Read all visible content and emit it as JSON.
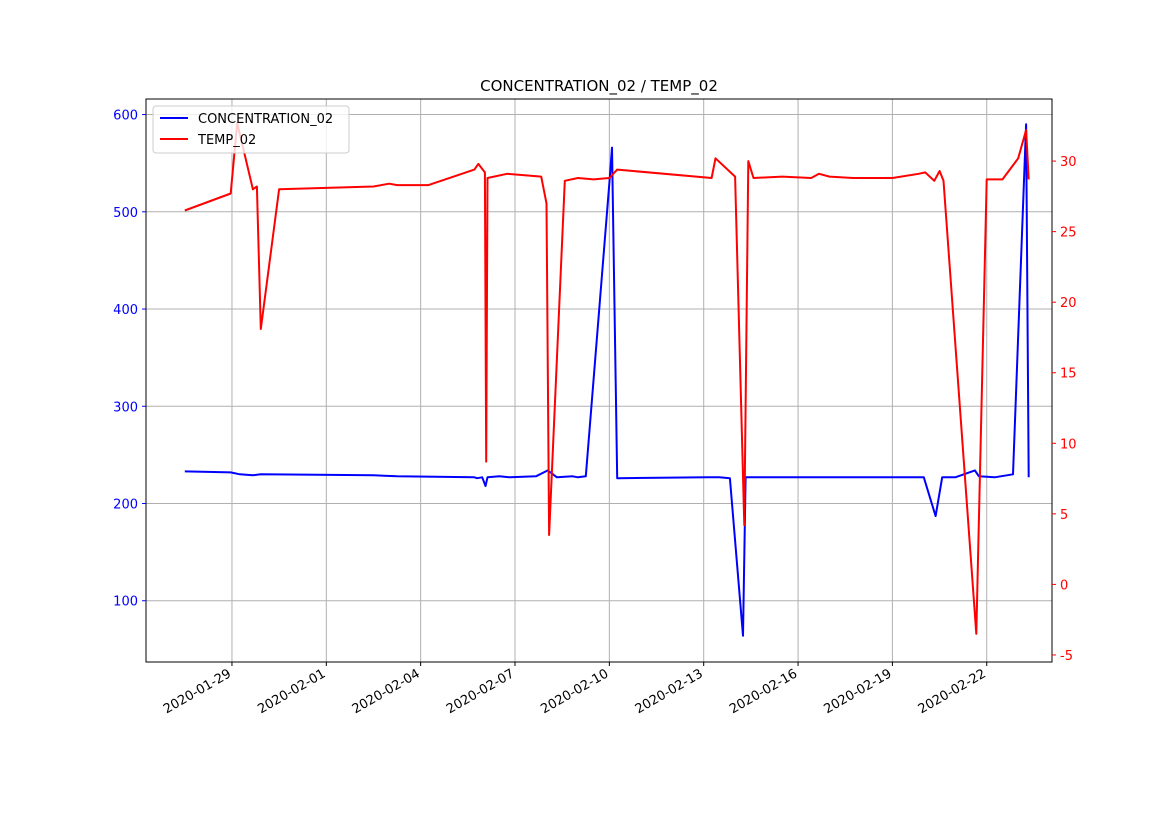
{
  "chart_data": {
    "type": "line",
    "title": "CONCENTRATION_02 / TEMP_02",
    "xlabel": "",
    "ylabel": "",
    "ylabel_right": "",
    "grid": true,
    "legend_position": "top-left",
    "x_ticks": [
      "2020-01-29",
      "2020-02-01",
      "2020-02-04",
      "2020-02-07",
      "2020-02-10",
      "2020-02-13",
      "2020-02-16",
      "2020-02-19",
      "2020-02-22"
    ],
    "y_left_ticks": [
      100,
      200,
      300,
      400,
      500,
      600
    ],
    "y_right_ticks": [
      -5,
      0,
      5,
      10,
      15,
      20,
      25,
      30
    ],
    "xlim": [
      "2020-01-26 06:24",
      "2020-02-24 01:48"
    ],
    "ylim_left": [
      37,
      616
    ],
    "ylim_right": [
      -5.5,
      34.4
    ],
    "series": [
      {
        "name": "CONCENTRATION_02",
        "axis": "left",
        "color": "#0000ff",
        "points": [
          [
            "2020-01-27 12:00",
            233
          ],
          [
            "2020-01-28 23:00",
            232
          ],
          [
            "2020-01-29 06:00",
            230
          ],
          [
            "2020-01-29 16:00",
            229
          ],
          [
            "2020-01-29 22:00",
            230
          ],
          [
            "2020-02-02 12:00",
            229
          ],
          [
            "2020-02-03 06:00",
            228
          ],
          [
            "2020-02-05 17:00",
            227
          ],
          [
            "2020-02-05 19:00",
            226
          ],
          [
            "2020-02-05 23:00",
            227
          ],
          [
            "2020-02-06 01:30",
            218
          ],
          [
            "2020-02-06 03:00",
            227
          ],
          [
            "2020-02-06 12:00",
            228
          ],
          [
            "2020-02-06 20:00",
            227
          ],
          [
            "2020-02-07 16:00",
            228
          ],
          [
            "2020-02-08 01:00",
            234
          ],
          [
            "2020-02-08 08:00",
            227
          ],
          [
            "2020-02-08 20:00",
            228
          ],
          [
            "2020-02-09 00:00",
            227
          ],
          [
            "2020-02-09 06:00",
            228
          ],
          [
            "2020-02-10 00:00",
            530
          ],
          [
            "2020-02-10 02:00",
            566
          ],
          [
            "2020-02-10 06:00",
            226
          ],
          [
            "2020-02-13 03:00",
            227
          ],
          [
            "2020-02-13 12:00",
            227
          ],
          [
            "2020-02-13 20:00",
            226
          ],
          [
            "2020-02-14 06:00",
            64
          ],
          [
            "2020-02-14 08:00",
            227
          ],
          [
            "2020-02-15 00:00",
            227
          ],
          [
            "2020-02-16 10:00",
            227
          ],
          [
            "2020-02-16 18:00",
            227
          ],
          [
            "2020-02-20 00:00",
            227
          ],
          [
            "2020-02-20 09:00",
            187
          ],
          [
            "2020-02-20 14:00",
            227
          ],
          [
            "2020-02-21 00:00",
            227
          ],
          [
            "2020-02-21 15:00",
            234
          ],
          [
            "2020-02-21 18:00",
            228
          ],
          [
            "2020-02-22 06:00",
            227
          ],
          [
            "2020-02-22 20:00",
            230
          ],
          [
            "2020-02-23 06:00",
            590
          ],
          [
            "2020-02-23 08:00",
            227
          ]
        ]
      },
      {
        "name": "TEMP_02",
        "axis": "right",
        "color": "#ff0000",
        "points": [
          [
            "2020-01-27 12:00",
            26.5
          ],
          [
            "2020-01-28 23:00",
            27.7
          ],
          [
            "2020-01-29 04:00",
            32.7
          ],
          [
            "2020-01-29 16:00",
            28.0
          ],
          [
            "2020-01-29 19:00",
            28.2
          ],
          [
            "2020-01-29 22:00",
            18.1
          ],
          [
            "2020-01-30 12:00",
            28.0
          ],
          [
            "2020-02-02 12:00",
            28.2
          ],
          [
            "2020-02-03 00:00",
            28.4
          ],
          [
            "2020-02-03 06:00",
            28.3
          ],
          [
            "2020-02-04 06:00",
            28.3
          ],
          [
            "2020-02-05 17:00",
            29.4
          ],
          [
            "2020-02-05 20:00",
            29.8
          ],
          [
            "2020-02-06 01:00",
            29.2
          ],
          [
            "2020-02-06 02:00",
            8.7
          ],
          [
            "2020-02-06 03:00",
            28.8
          ],
          [
            "2020-02-06 18:00",
            29.1
          ],
          [
            "2020-02-07 20:00",
            28.9
          ],
          [
            "2020-02-08 00:00",
            27.0
          ],
          [
            "2020-02-08 02:00",
            3.5
          ],
          [
            "2020-02-08 14:00",
            28.6
          ],
          [
            "2020-02-09 00:00",
            28.8
          ],
          [
            "2020-02-09 12:00",
            28.7
          ],
          [
            "2020-02-10 00:00",
            28.8
          ],
          [
            "2020-02-10 06:00",
            29.4
          ],
          [
            "2020-02-13 06:00",
            28.8
          ],
          [
            "2020-02-13 09:00",
            30.2
          ],
          [
            "2020-02-14 00:00",
            28.9
          ],
          [
            "2020-02-14 07:00",
            4.2
          ],
          [
            "2020-02-14 10:00",
            30.0
          ],
          [
            "2020-02-14 14:00",
            28.8
          ],
          [
            "2020-02-15 12:00",
            28.9
          ],
          [
            "2020-02-16 10:00",
            28.8
          ],
          [
            "2020-02-16 16:00",
            29.1
          ],
          [
            "2020-02-17 00:00",
            28.9
          ],
          [
            "2020-02-17 18:00",
            28.8
          ],
          [
            "2020-02-19 00:00",
            28.8
          ],
          [
            "2020-02-19 20:00",
            29.1
          ],
          [
            "2020-02-20 01:00",
            29.2
          ],
          [
            "2020-02-20 08:00",
            28.6
          ],
          [
            "2020-02-20 12:00",
            29.3
          ],
          [
            "2020-02-20 15:00",
            28.6
          ],
          [
            "2020-02-21 16:00",
            -3.5
          ],
          [
            "2020-02-22 00:00",
            28.7
          ],
          [
            "2020-02-22 12:00",
            28.7
          ],
          [
            "2020-02-23 00:00",
            30.2
          ],
          [
            "2020-02-23 06:00",
            32.2
          ],
          [
            "2020-02-23 08:00",
            28.7
          ]
        ]
      }
    ]
  }
}
